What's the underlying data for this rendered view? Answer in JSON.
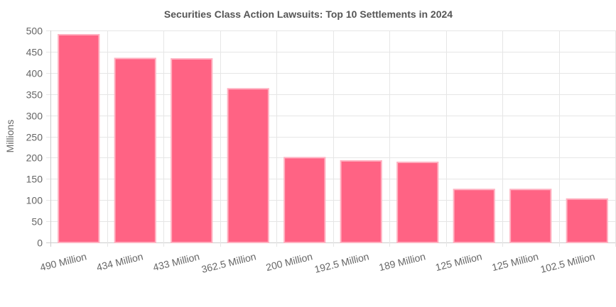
{
  "chart_data": {
    "type": "bar",
    "title": "Securities Class Action Lawsuits: Top 10 Settlements in 2024",
    "xlabel": "",
    "ylabel": "Millions",
    "categories": [
      "490 Million",
      "434 Million",
      "433 Million",
      "362.5 Million",
      "200 Million",
      "192.5 Million",
      "189 Million",
      "125 Million",
      "125 Million",
      "102.5 Million"
    ],
    "values": [
      490,
      434,
      433,
      362.5,
      200,
      192.5,
      189,
      125,
      125,
      102.5
    ],
    "ylim": [
      0,
      500
    ],
    "yticks": [
      0,
      50,
      100,
      150,
      200,
      250,
      300,
      350,
      400,
      450,
      500
    ],
    "grid": true,
    "legend": "none",
    "colors": {
      "bar_fill": "#ff6384",
      "bar_border": "#ffb1c1"
    }
  }
}
